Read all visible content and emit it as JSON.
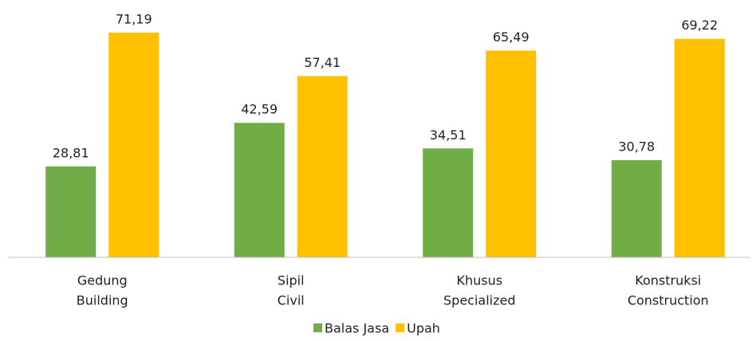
{
  "chart_data": {
    "type": "bar",
    "categories": [
      [
        "Gedung",
        "Building"
      ],
      [
        "Sipil",
        "Civil"
      ],
      [
        "Khusus",
        "Specialized"
      ],
      [
        "Konstruksi",
        "Construction"
      ]
    ],
    "series": [
      {
        "name": "Balas Jasa",
        "color": "#70ad47",
        "values": [
          28.81,
          42.59,
          34.51,
          30.78
        ],
        "value_labels": [
          "28,81",
          "42,59",
          "34,51",
          "30,78"
        ]
      },
      {
        "name": "Upah",
        "color": "#ffc000",
        "values": [
          71.19,
          57.41,
          65.49,
          69.22
        ],
        "value_labels": [
          "71,19",
          "57,41",
          "65,49",
          "69,22"
        ]
      }
    ],
    "ylim": [
      0,
      80
    ],
    "legend": "bottom"
  }
}
